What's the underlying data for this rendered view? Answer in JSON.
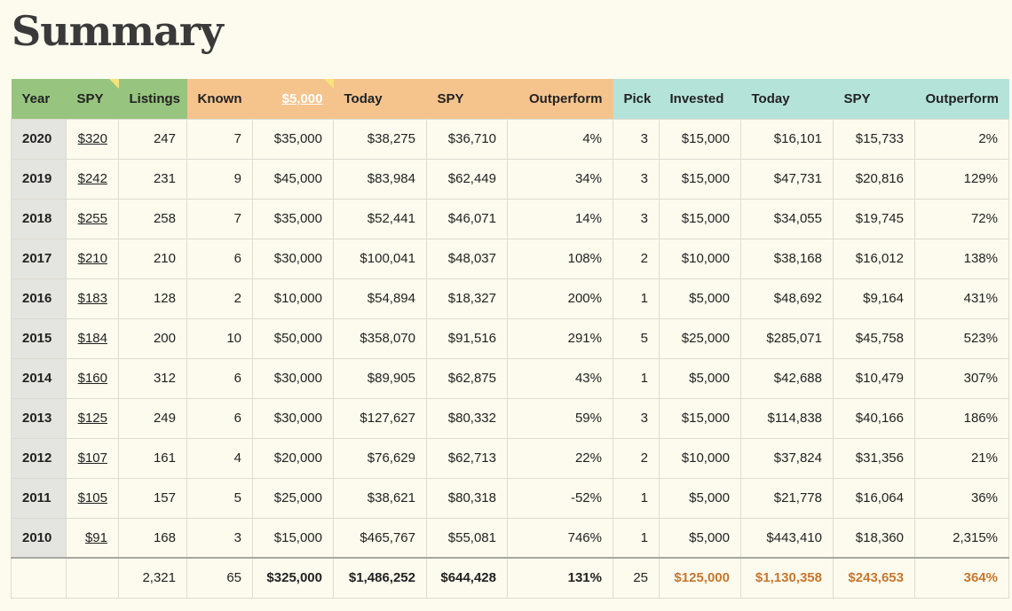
{
  "page_title": "Summary",
  "headers": {
    "year": "Year",
    "spy": "SPY",
    "listings": "Listings",
    "known": "Known",
    "invested_link": "$5,000",
    "today": "Today",
    "spy2": "SPY",
    "outperform": "Outperform",
    "pick": "Pick",
    "invested": "Invested",
    "today2": "Today",
    "spy3": "SPY",
    "outperform2": "Outperform"
  },
  "rows": [
    {
      "year": "2020",
      "spy": "$320",
      "listings": "247",
      "known": "7",
      "known_invested": "$35,000",
      "today": "$38,275",
      "spy_value": "$36,710",
      "outperform": "4%",
      "pick": "3",
      "invested": "$15,000",
      "pick_today": "$16,101",
      "pick_spy": "$15,733",
      "pick_outperform": "2%"
    },
    {
      "year": "2019",
      "spy": "$242",
      "listings": "231",
      "known": "9",
      "known_invested": "$45,000",
      "today": "$83,984",
      "spy_value": "$62,449",
      "outperform": "34%",
      "pick": "3",
      "invested": "$15,000",
      "pick_today": "$47,731",
      "pick_spy": "$20,816",
      "pick_outperform": "129%"
    },
    {
      "year": "2018",
      "spy": "$255",
      "listings": "258",
      "known": "7",
      "known_invested": "$35,000",
      "today": "$52,441",
      "spy_value": "$46,071",
      "outperform": "14%",
      "pick": "3",
      "invested": "$15,000",
      "pick_today": "$34,055",
      "pick_spy": "$19,745",
      "pick_outperform": "72%"
    },
    {
      "year": "2017",
      "spy": "$210",
      "listings": "210",
      "known": "6",
      "known_invested": "$30,000",
      "today": "$100,041",
      "spy_value": "$48,037",
      "outperform": "108%",
      "pick": "2",
      "invested": "$10,000",
      "pick_today": "$38,168",
      "pick_spy": "$16,012",
      "pick_outperform": "138%"
    },
    {
      "year": "2016",
      "spy": "$183",
      "listings": "128",
      "known": "2",
      "known_invested": "$10,000",
      "today": "$54,894",
      "spy_value": "$18,327",
      "outperform": "200%",
      "pick": "1",
      "invested": "$5,000",
      "pick_today": "$48,692",
      "pick_spy": "$9,164",
      "pick_outperform": "431%"
    },
    {
      "year": "2015",
      "spy": "$184",
      "listings": "200",
      "known": "10",
      "known_invested": "$50,000",
      "today": "$358,070",
      "spy_value": "$91,516",
      "outperform": "291%",
      "pick": "5",
      "invested": "$25,000",
      "pick_today": "$285,071",
      "pick_spy": "$45,758",
      "pick_outperform": "523%"
    },
    {
      "year": "2014",
      "spy": "$160",
      "listings": "312",
      "known": "6",
      "known_invested": "$30,000",
      "today": "$89,905",
      "spy_value": "$62,875",
      "outperform": "43%",
      "pick": "1",
      "invested": "$5,000",
      "pick_today": "$42,688",
      "pick_spy": "$10,479",
      "pick_outperform": "307%"
    },
    {
      "year": "2013",
      "spy": "$125",
      "listings": "249",
      "known": "6",
      "known_invested": "$30,000",
      "today": "$127,627",
      "spy_value": "$80,332",
      "outperform": "59%",
      "pick": "3",
      "invested": "$15,000",
      "pick_today": "$114,838",
      "pick_spy": "$40,166",
      "pick_outperform": "186%"
    },
    {
      "year": "2012",
      "spy": "$107",
      "listings": "161",
      "known": "4",
      "known_invested": "$20,000",
      "today": "$76,629",
      "spy_value": "$62,713",
      "outperform": "22%",
      "pick": "2",
      "invested": "$10,000",
      "pick_today": "$37,824",
      "pick_spy": "$31,356",
      "pick_outperform": "21%"
    },
    {
      "year": "2011",
      "spy": "$105",
      "listings": "157",
      "known": "5",
      "known_invested": "$25,000",
      "today": "$38,621",
      "spy_value": "$80,318",
      "outperform": "-52%",
      "pick": "1",
      "invested": "$5,000",
      "pick_today": "$21,778",
      "pick_spy": "$16,064",
      "pick_outperform": "36%"
    },
    {
      "year": "2010",
      "spy": "$91",
      "listings": "168",
      "known": "3",
      "known_invested": "$15,000",
      "today": "$465,767",
      "spy_value": "$55,081",
      "outperform": "746%",
      "pick": "1",
      "invested": "$5,000",
      "pick_today": "$443,410",
      "pick_spy": "$18,360",
      "pick_outperform": "2,315%"
    }
  ],
  "totals": {
    "year": "",
    "spy": "",
    "listings": "2,321",
    "known": "65",
    "known_invested": "$325,000",
    "today": "$1,486,252",
    "spy_value": "$644,428",
    "outperform": "131%",
    "pick": "25",
    "invested": "$125,000",
    "pick_today": "$1,130,358",
    "pick_spy": "$243,653",
    "pick_outperform": "364%"
  },
  "colors": {
    "green_header": "#97c47f",
    "orange_header": "#f5c48d",
    "teal_header": "#b4e3da",
    "total_accent": "#c6772d",
    "page_bg": "#fdfbee"
  }
}
